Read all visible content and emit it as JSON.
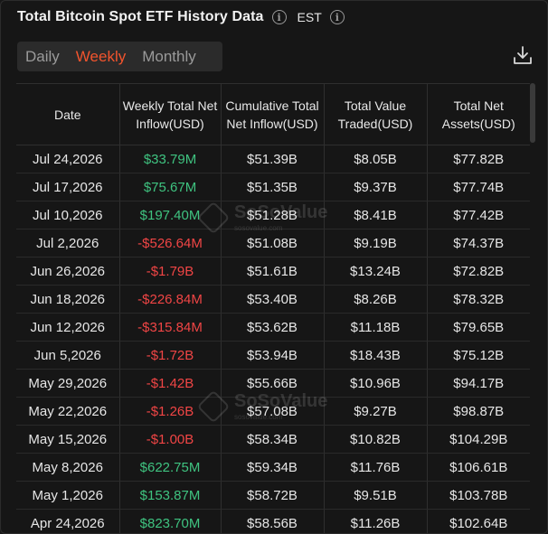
{
  "header": {
    "title": "Total Bitcoin Spot ETF History Data",
    "timezone": "EST"
  },
  "tabs": [
    {
      "label": "Daily",
      "active": false
    },
    {
      "label": "Weekly",
      "active": true
    },
    {
      "label": "Monthly",
      "active": false
    }
  ],
  "table": {
    "columns": [
      "Date",
      "Weekly Total Net Inflow(USD)",
      "Cumulative Total Net Inflow(USD)",
      "Total Value Traded(USD)",
      "Total Net Assets(USD)"
    ],
    "rows": [
      {
        "date": "Jul 24,2026",
        "inflow": "$33.79M",
        "sign": "pos",
        "cumulative": "$51.39B",
        "traded": "$8.05B",
        "assets": "$77.82B"
      },
      {
        "date": "Jul 17,2026",
        "inflow": "$75.67M",
        "sign": "pos",
        "cumulative": "$51.35B",
        "traded": "$9.37B",
        "assets": "$77.74B"
      },
      {
        "date": "Jul 10,2026",
        "inflow": "$197.40M",
        "sign": "pos",
        "cumulative": "$51.28B",
        "traded": "$8.41B",
        "assets": "$77.42B"
      },
      {
        "date": "Jul 2,2026",
        "inflow": "-$526.64M",
        "sign": "neg",
        "cumulative": "$51.08B",
        "traded": "$9.19B",
        "assets": "$74.37B"
      },
      {
        "date": "Jun 26,2026",
        "inflow": "-$1.79B",
        "sign": "neg",
        "cumulative": "$51.61B",
        "traded": "$13.24B",
        "assets": "$72.82B"
      },
      {
        "date": "Jun 18,2026",
        "inflow": "-$226.84M",
        "sign": "neg",
        "cumulative": "$53.40B",
        "traded": "$8.26B",
        "assets": "$78.32B"
      },
      {
        "date": "Jun 12,2026",
        "inflow": "-$315.84M",
        "sign": "neg",
        "cumulative": "$53.62B",
        "traded": "$11.18B",
        "assets": "$79.65B"
      },
      {
        "date": "Jun 5,2026",
        "inflow": "-$1.72B",
        "sign": "neg",
        "cumulative": "$53.94B",
        "traded": "$18.43B",
        "assets": "$75.12B"
      },
      {
        "date": "May 29,2026",
        "inflow": "-$1.42B",
        "sign": "neg",
        "cumulative": "$55.66B",
        "traded": "$10.96B",
        "assets": "$94.17B"
      },
      {
        "date": "May 22,2026",
        "inflow": "-$1.26B",
        "sign": "neg",
        "cumulative": "$57.08B",
        "traded": "$9.27B",
        "assets": "$98.87B"
      },
      {
        "date": "May 15,2026",
        "inflow": "-$1.00B",
        "sign": "neg",
        "cumulative": "$58.34B",
        "traded": "$10.82B",
        "assets": "$104.29B"
      },
      {
        "date": "May 8,2026",
        "inflow": "$622.75M",
        "sign": "pos",
        "cumulative": "$59.34B",
        "traded": "$11.76B",
        "assets": "$106.61B"
      },
      {
        "date": "May 1,2026",
        "inflow": "$153.87M",
        "sign": "pos",
        "cumulative": "$58.72B",
        "traded": "$9.51B",
        "assets": "$103.78B"
      },
      {
        "date": "Apr 24,2026",
        "inflow": "$823.70M",
        "sign": "pos",
        "cumulative": "$58.56B",
        "traded": "$11.26B",
        "assets": "$102.64B"
      }
    ]
  },
  "watermark": {
    "brand": "SoSoValue",
    "sub": "sosovalue.com"
  },
  "colors": {
    "accent": "#f2542d",
    "positive": "#3fc380",
    "negative": "#f04545"
  },
  "icons": {
    "info": "info-icon",
    "download": "download-icon"
  }
}
